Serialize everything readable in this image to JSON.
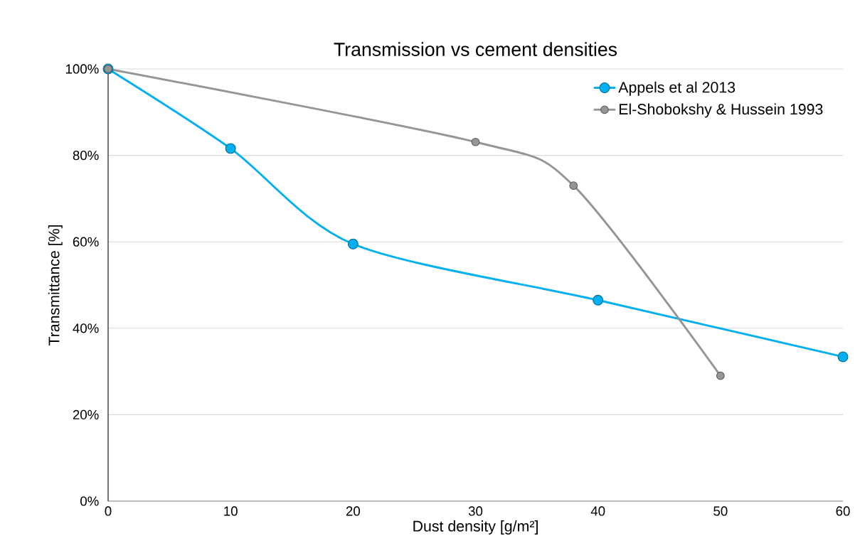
{
  "chart_data": {
    "type": "line",
    "title": "Transmission vs cement densities",
    "xlabel": "Dust density [g/m²]",
    "ylabel": "Transmittance [%]",
    "xlim": [
      0,
      60
    ],
    "xticks": [
      0,
      10,
      20,
      30,
      40,
      50,
      60
    ],
    "ylim": [
      0,
      100
    ],
    "yticks": [
      {
        "value": 0,
        "label": "0%"
      },
      {
        "value": 20,
        "label": "20%"
      },
      {
        "value": 40,
        "label": "40%"
      },
      {
        "value": 60,
        "label": "60%"
      },
      {
        "value": 80,
        "label": "80%"
      },
      {
        "value": 100,
        "label": "100%"
      }
    ],
    "grid": "y",
    "legend": "top right",
    "marker": "circle",
    "line_style": "solid",
    "series": [
      {
        "name": "Appels et al 2013",
        "color": "#00b0f0",
        "x": [
          0,
          10,
          20,
          40,
          60
        ],
        "values": [
          100,
          81.6,
          59.5,
          46.5,
          33.4
        ]
      },
      {
        "name": "El-Shobokshy & Hussein 1993",
        "color": "#969696",
        "x": [
          0,
          30,
          38,
          50
        ],
        "values": [
          100,
          83.1,
          73.0,
          29.0
        ]
      }
    ]
  }
}
